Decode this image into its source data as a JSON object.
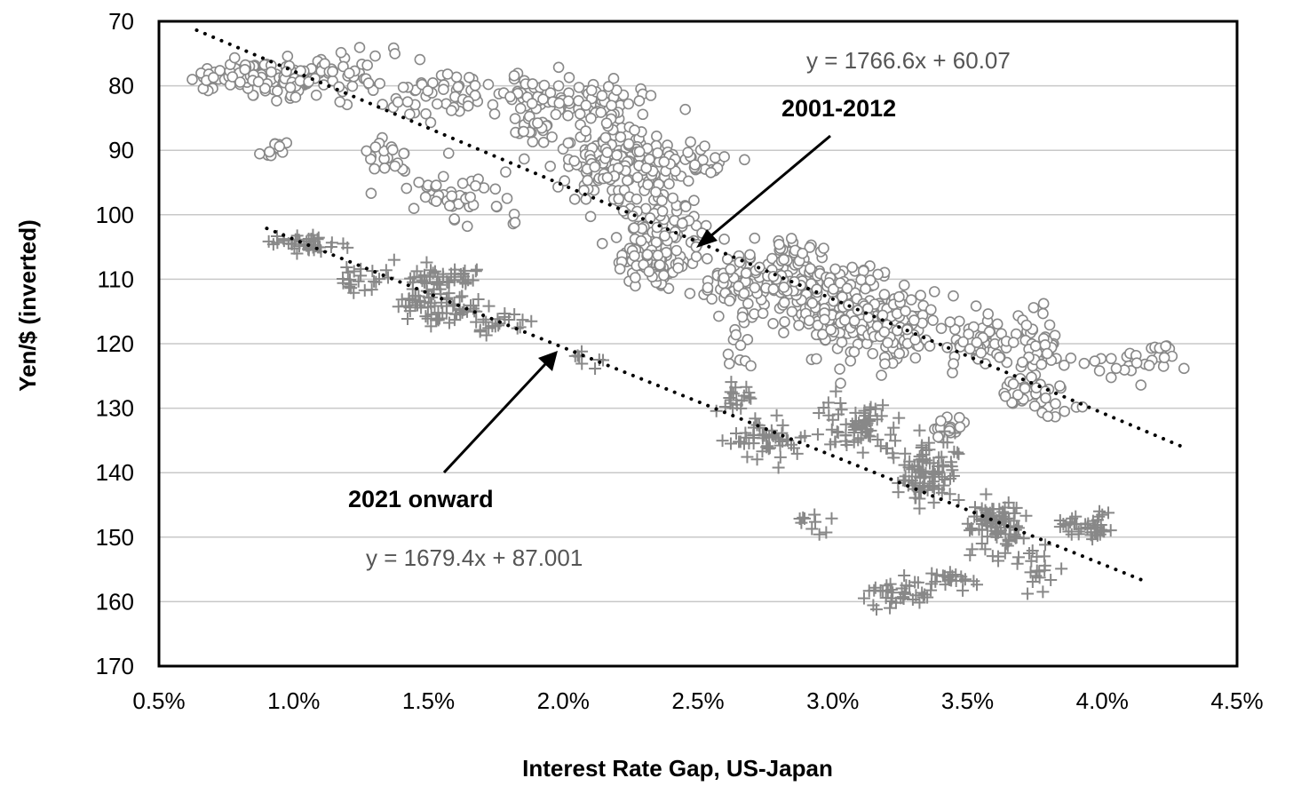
{
  "chart_data": {
    "type": "scatter",
    "title": "",
    "xlabel": "Interest Rate Gap, US-Japan",
    "ylabel": "Yen/$ (inverted)",
    "x_axis": {
      "min": 0.005,
      "max": 0.045,
      "ticks": [
        0.005,
        0.01,
        0.015,
        0.02,
        0.025,
        0.03,
        0.035,
        0.04,
        0.045
      ],
      "tick_labels": [
        "0.5%",
        "1.0%",
        "1.5%",
        "2.0%",
        "2.5%",
        "3.0%",
        "3.5%",
        "4.0%",
        "4.5%"
      ]
    },
    "y_axis": {
      "min": 70,
      "max": 170,
      "inverted": true,
      "ticks": [
        70,
        80,
        90,
        100,
        110,
        120,
        130,
        140,
        150,
        160,
        170
      ],
      "tick_labels": [
        "70",
        "80",
        "90",
        "100",
        "110",
        "120",
        "130",
        "140",
        "150",
        "160",
        "170"
      ]
    },
    "grid": "horizontal",
    "series": [
      {
        "name": "2001-2012",
        "marker": "circle",
        "color": "#888888",
        "trendline": {
          "label": "y = 1766.6x + 60.07",
          "slope": 1766.6,
          "intercept": 60.07,
          "x_range": [
            0.0064,
            0.043
          ]
        },
        "clusters": [
          {
            "x": 0.0085,
            "y": 78.5,
            "sx": 0.0012,
            "sy": 1.3,
            "n": 90
          },
          {
            "x": 0.0105,
            "y": 79.0,
            "sx": 0.0008,
            "sy": 2.0,
            "n": 50
          },
          {
            "x": 0.0125,
            "y": 79.0,
            "sx": 0.0006,
            "sy": 3.0,
            "n": 25
          },
          {
            "x": 0.0135,
            "y": 91.0,
            "sx": 0.0006,
            "sy": 2.0,
            "n": 20
          },
          {
            "x": 0.0095,
            "y": 89.8,
            "sx": 0.0006,
            "sy": 1.0,
            "n": 12
          },
          {
            "x": 0.0155,
            "y": 82.0,
            "sx": 0.0012,
            "sy": 2.5,
            "n": 50
          },
          {
            "x": 0.016,
            "y": 97.0,
            "sx": 0.0012,
            "sy": 2.5,
            "n": 45
          },
          {
            "x": 0.0185,
            "y": 80.5,
            "sx": 0.0008,
            "sy": 2.0,
            "n": 20
          },
          {
            "x": 0.021,
            "y": 82.0,
            "sx": 0.0012,
            "sy": 2.0,
            "n": 70
          },
          {
            "x": 0.019,
            "y": 87.5,
            "sx": 0.0006,
            "sy": 2.5,
            "n": 25
          },
          {
            "x": 0.0215,
            "y": 92.0,
            "sx": 0.0012,
            "sy": 3.5,
            "n": 120
          },
          {
            "x": 0.0245,
            "y": 92.0,
            "sx": 0.001,
            "sy": 2.5,
            "n": 50
          },
          {
            "x": 0.0235,
            "y": 101.0,
            "sx": 0.001,
            "sy": 3.0,
            "n": 60
          },
          {
            "x": 0.0235,
            "y": 107.0,
            "sx": 0.001,
            "sy": 2.5,
            "n": 80
          },
          {
            "x": 0.0265,
            "y": 111.0,
            "sx": 0.0008,
            "sy": 3.0,
            "n": 60
          },
          {
            "x": 0.0285,
            "y": 110.0,
            "sx": 0.0007,
            "sy": 4.0,
            "n": 110
          },
          {
            "x": 0.0305,
            "y": 115.0,
            "sx": 0.001,
            "sy": 4.0,
            "n": 160
          },
          {
            "x": 0.0325,
            "y": 117.0,
            "sx": 0.0008,
            "sy": 3.5,
            "n": 90
          },
          {
            "x": 0.0355,
            "y": 120.0,
            "sx": 0.0008,
            "sy": 2.5,
            "n": 60
          },
          {
            "x": 0.0375,
            "y": 120.0,
            "sx": 0.0005,
            "sy": 3.0,
            "n": 40
          },
          {
            "x": 0.0375,
            "y": 128.0,
            "sx": 0.0008,
            "sy": 2.5,
            "n": 40
          },
          {
            "x": 0.0405,
            "y": 123.0,
            "sx": 0.0006,
            "sy": 1.5,
            "n": 15
          },
          {
            "x": 0.042,
            "y": 122.0,
            "sx": 0.0004,
            "sy": 2.0,
            "n": 15
          },
          {
            "x": 0.0265,
            "y": 120.0,
            "sx": 0.0004,
            "sy": 2.0,
            "n": 10
          },
          {
            "x": 0.0345,
            "y": 133.0,
            "sx": 0.0006,
            "sy": 1.0,
            "n": 15
          }
        ]
      },
      {
        "name": "2021 onward",
        "marker": "plus",
        "color": "#888888",
        "trendline": {
          "label": "y = 1679.4x + 87.001",
          "slope": 1679.4,
          "intercept": 87.001,
          "x_range": [
            0.009,
            0.0415
          ]
        },
        "clusters": [
          {
            "x": 0.0105,
            "y": 104.5,
            "sx": 0.0007,
            "sy": 1.0,
            "n": 40
          },
          {
            "x": 0.0125,
            "y": 110.0,
            "sx": 0.0005,
            "sy": 1.5,
            "n": 20
          },
          {
            "x": 0.0155,
            "y": 110.0,
            "sx": 0.0008,
            "sy": 1.2,
            "n": 50
          },
          {
            "x": 0.0155,
            "y": 114.5,
            "sx": 0.001,
            "sy": 1.5,
            "n": 60
          },
          {
            "x": 0.0175,
            "y": 116.5,
            "sx": 0.0006,
            "sy": 1.0,
            "n": 20
          },
          {
            "x": 0.021,
            "y": 122.5,
            "sx": 0.0004,
            "sy": 0.8,
            "n": 8
          },
          {
            "x": 0.0265,
            "y": 128.0,
            "sx": 0.0005,
            "sy": 1.5,
            "n": 20
          },
          {
            "x": 0.0275,
            "y": 135.0,
            "sx": 0.0008,
            "sy": 1.8,
            "n": 50
          },
          {
            "x": 0.031,
            "y": 133.0,
            "sx": 0.0008,
            "sy": 2.5,
            "n": 70
          },
          {
            "x": 0.0335,
            "y": 140.0,
            "sx": 0.0007,
            "sy": 3.0,
            "n": 90
          },
          {
            "x": 0.036,
            "y": 148.0,
            "sx": 0.0006,
            "sy": 2.5,
            "n": 90
          },
          {
            "x": 0.0395,
            "y": 148.5,
            "sx": 0.0007,
            "sy": 1.2,
            "n": 40
          },
          {
            "x": 0.0325,
            "y": 159.0,
            "sx": 0.0007,
            "sy": 1.5,
            "n": 40
          },
          {
            "x": 0.0345,
            "y": 156.5,
            "sx": 0.0005,
            "sy": 1.0,
            "n": 20
          },
          {
            "x": 0.0375,
            "y": 155.0,
            "sx": 0.0004,
            "sy": 2.0,
            "n": 20
          },
          {
            "x": 0.0295,
            "y": 148.0,
            "sx": 0.0004,
            "sy": 1.5,
            "n": 10
          }
        ]
      }
    ],
    "annotations": [
      {
        "text": "2001-2012"
      },
      {
        "text": "2021 onward"
      }
    ]
  }
}
